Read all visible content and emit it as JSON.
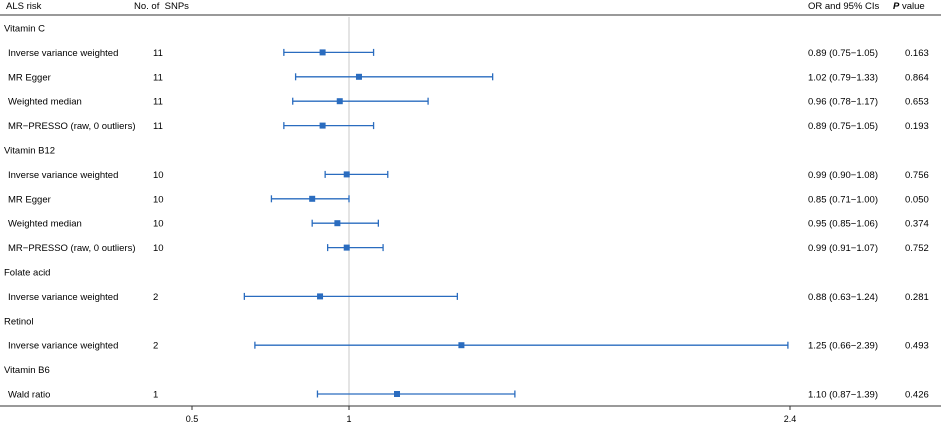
{
  "chart_data": {
    "type": "forest",
    "headers": {
      "risk": "ALS risk",
      "nsnps": "No. of  SNPs",
      "or_ci": "OR and 95% CIs",
      "p_italic": "P",
      "p_rest": " value"
    },
    "xaxis": {
      "scale": "log",
      "xlim": [
        0.5,
        2.4
      ],
      "reference_line": 1,
      "ticks": [
        0.5,
        1,
        2.4
      ],
      "tick_labels": [
        "0.5",
        "1",
        "2.4"
      ]
    },
    "color": "#2a6cbf",
    "rows": [
      {
        "type": "group",
        "label": "Vitamin C"
      },
      {
        "type": "method",
        "label": "Inverse variance weighted",
        "n": "11",
        "or": 0.89,
        "lo": 0.75,
        "hi": 1.05,
        "ci_text": "0.89 (0.75−1.05)",
        "p": "0.163"
      },
      {
        "type": "method",
        "label": "MR Egger",
        "n": "11",
        "or": 1.02,
        "lo": 0.79,
        "hi": 1.33,
        "ci_text": "1.02 (0.79−1.33)",
        "p": "0.864"
      },
      {
        "type": "method",
        "label": "Weighted median",
        "n": "11",
        "or": 0.96,
        "lo": 0.78,
        "hi": 1.17,
        "ci_text": "0.96 (0.78−1.17)",
        "p": "0.653"
      },
      {
        "type": "method",
        "label": "MR−PRESSO (raw, 0 outliers)",
        "n": "11",
        "or": 0.89,
        "lo": 0.75,
        "hi": 1.05,
        "ci_text": "0.89 (0.75−1.05)",
        "p": "0.193"
      },
      {
        "type": "group",
        "label": "Vitamin B12"
      },
      {
        "type": "method",
        "label": "Inverse variance weighted",
        "n": "10",
        "or": 0.99,
        "lo": 0.9,
        "hi": 1.08,
        "ci_text": "0.99 (0.90−1.08)",
        "p": "0.756"
      },
      {
        "type": "method",
        "label": "MR Egger",
        "n": "10",
        "or": 0.85,
        "lo": 0.71,
        "hi": 1.0,
        "ci_text": "0.85 (0.71−1.00)",
        "p": "0.050"
      },
      {
        "type": "method",
        "label": "Weighted median",
        "n": "10",
        "or": 0.95,
        "lo": 0.85,
        "hi": 1.06,
        "ci_text": "0.95 (0.85−1.06)",
        "p": "0.374"
      },
      {
        "type": "method",
        "label": "MR−PRESSO (raw, 0 outliers)",
        "n": "10",
        "or": 0.99,
        "lo": 0.91,
        "hi": 1.07,
        "ci_text": "0.99 (0.91−1.07)",
        "p": "0.752"
      },
      {
        "type": "group",
        "label": "Folate acid"
      },
      {
        "type": "method",
        "label": "Inverse variance weighted",
        "n": "2",
        "or": 0.88,
        "lo": 0.63,
        "hi": 1.24,
        "ci_text": "0.88 (0.63−1.24)",
        "p": "0.281"
      },
      {
        "type": "group",
        "label": "Retinol"
      },
      {
        "type": "method",
        "label": "Inverse variance weighted",
        "n": "2",
        "or": 1.25,
        "lo": 0.66,
        "hi": 2.39,
        "ci_text": "1.25 (0.66−2.39)",
        "p": "0.493"
      },
      {
        "type": "group",
        "label": "Vitamin B6"
      },
      {
        "type": "method",
        "label": "Wald ratio",
        "n": "1",
        "or": 1.1,
        "lo": 0.87,
        "hi": 1.39,
        "ci_text": "1.10 (0.87−1.39)",
        "p": "0.426"
      }
    ]
  }
}
